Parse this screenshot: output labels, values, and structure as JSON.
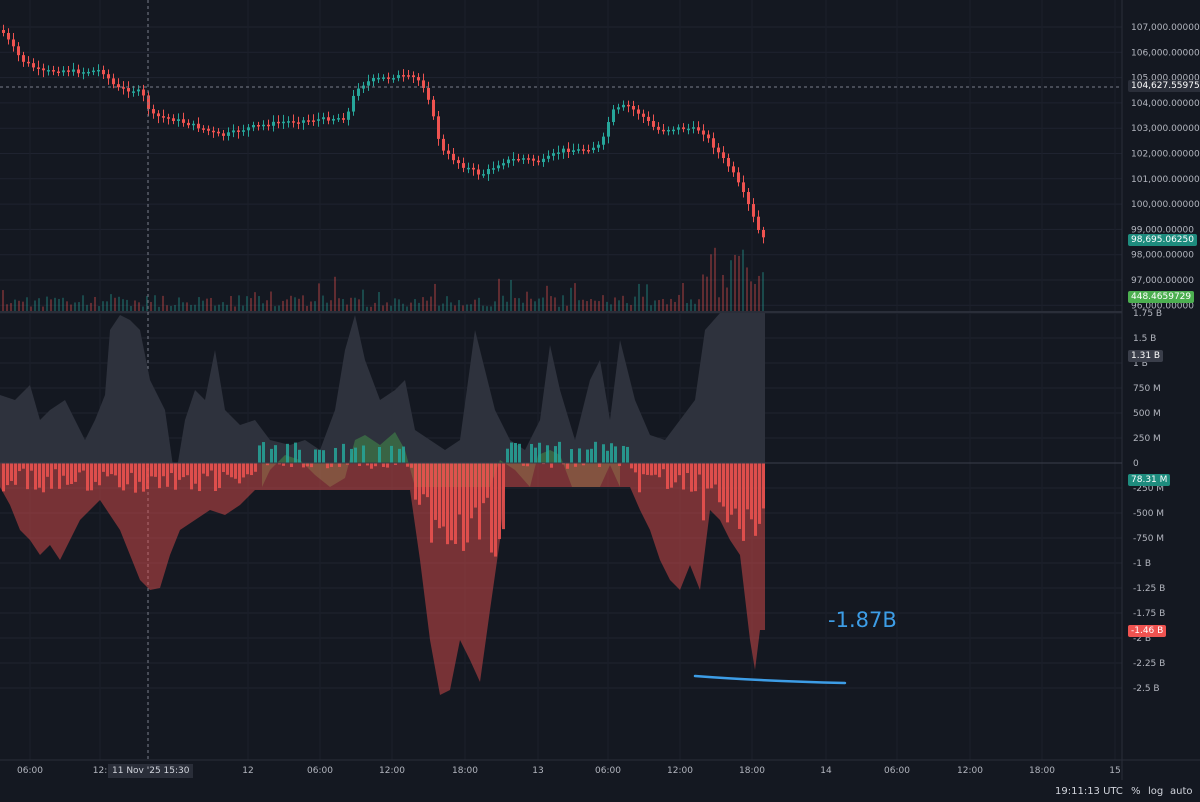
{
  "chart": {
    "price_axis_labels": [
      "107,000.00000",
      "106,000.00000",
      "105,000.00000",
      "104,000.00000",
      "103,000.00000",
      "102,000.00000",
      "101,000.00000",
      "100,000.00000",
      "99,000.00000",
      "98,000.00000",
      "97,000.00000",
      "96,000.00000"
    ],
    "delta_axis_labels": [
      "1.75 B",
      "1.5 B",
      "1 B",
      "750 M",
      "500 M",
      "250 M",
      "0",
      "-250 M",
      "-500 M",
      "-750 M",
      "-1 B",
      "-1.25 B",
      "-1.75 B",
      "-2 B",
      "-2.25 B",
      "-2.5 B"
    ],
    "time_labels": [
      "06:00",
      "12:",
      "12",
      "06:00",
      "12:00",
      "18:00",
      "13",
      "06:00",
      "12:00",
      "18:00",
      "14",
      "06:00",
      "12:00",
      "18:00",
      "15"
    ],
    "crosshair_price": "104,627.55975",
    "last_price": "98,695.06250",
    "volume_value": "448.4659729",
    "oi_value": "1.31 B",
    "pos_value": "78.31 M",
    "neg_value": "-1.46 B",
    "crosshair_time": "11 Nov '25   15:30",
    "clock": "19:11:13 UTC",
    "percent_label": "%",
    "log_label": "log",
    "auto_label": "auto",
    "annotation": "-1.87B",
    "colors": {
      "up": "#26a69a",
      "down": "#ef5350",
      "bg": "#141821",
      "annotation": "#3d9de6"
    }
  }
}
